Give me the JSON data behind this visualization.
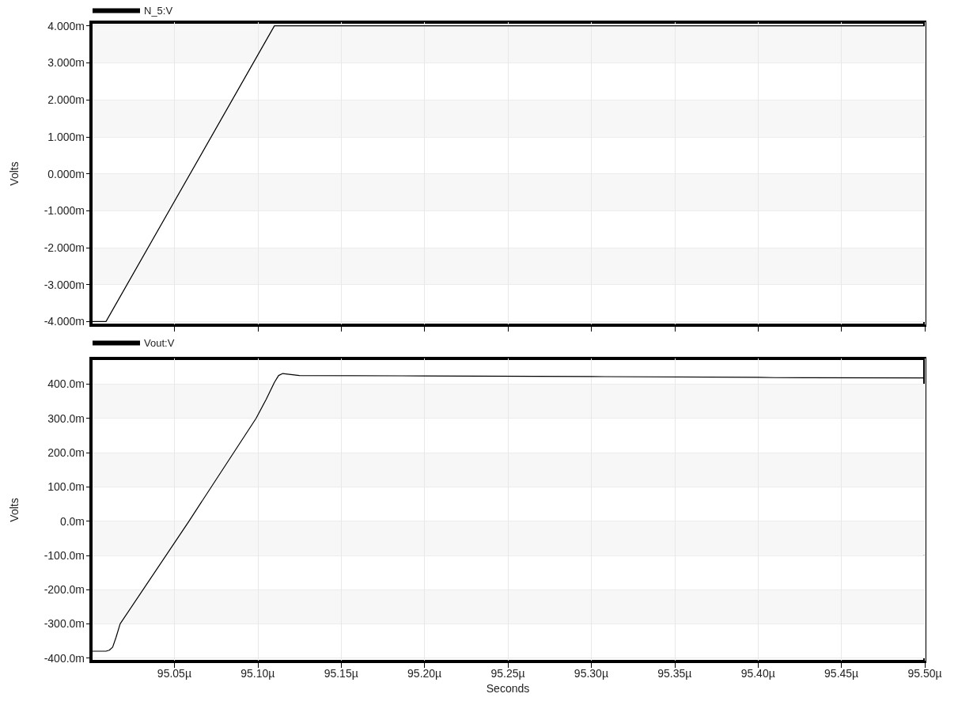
{
  "chart_data": [
    {
      "type": "line",
      "ylabel": "Volts",
      "legend": "top left",
      "grid": true,
      "tick_labels": "y",
      "xlim": [
        95.0,
        95.5
      ],
      "ylim": [
        -4.1,
        4.1
      ],
      "xticks": [
        {
          "value": 95.05,
          "label": null
        },
        {
          "value": 95.1,
          "label": null
        },
        {
          "value": 95.15,
          "label": null
        },
        {
          "value": 95.2,
          "label": null
        },
        {
          "value": 95.25,
          "label": null
        },
        {
          "value": 95.3,
          "label": null
        },
        {
          "value": 95.35,
          "label": null
        },
        {
          "value": 95.4,
          "label": null
        },
        {
          "value": 95.45,
          "label": null
        },
        {
          "value": 95.5,
          "label": null
        }
      ],
      "yticks": [
        {
          "value": -4,
          "label": "-4.000m"
        },
        {
          "value": -3,
          "label": "-3.000m"
        },
        {
          "value": -2,
          "label": "-2.000m"
        },
        {
          "value": -1,
          "label": "-1.000m"
        },
        {
          "value": 0,
          "label": "0.000m"
        },
        {
          "value": 1,
          "label": "1.000m"
        },
        {
          "value": 2,
          "label": "2.000m"
        },
        {
          "value": 3,
          "label": "3.000m"
        },
        {
          "value": 4,
          "label": "4.000m"
        }
      ],
      "series": [
        {
          "name": "N_5:V",
          "color": "#000000",
          "x": [
            95.0,
            95.009,
            95.11,
            95.5
          ],
          "values": [
            -4.0,
            -4.0,
            4.0,
            4.0
          ]
        }
      ]
    },
    {
      "type": "line",
      "ylabel": "Volts",
      "xlabel": "Seconds",
      "legend": "top left",
      "grid": true,
      "xlim": [
        95.0,
        95.5
      ],
      "ylim": [
        -410,
        475
      ],
      "xticks": [
        {
          "value": 95.05,
          "label": "95.05µ"
        },
        {
          "value": 95.1,
          "label": "95.10µ"
        },
        {
          "value": 95.15,
          "label": "95.15µ"
        },
        {
          "value": 95.2,
          "label": "95.20µ"
        },
        {
          "value": 95.25,
          "label": "95.25µ"
        },
        {
          "value": 95.3,
          "label": "95.30µ"
        },
        {
          "value": 95.35,
          "label": "95.35µ"
        },
        {
          "value": 95.4,
          "label": "95.40µ"
        },
        {
          "value": 95.45,
          "label": "95.45µ"
        },
        {
          "value": 95.5,
          "label": "95.50µ"
        }
      ],
      "yticks": [
        {
          "value": -400,
          "label": "-400.0m"
        },
        {
          "value": -300,
          "label": "-300.0m"
        },
        {
          "value": -200,
          "label": "-200.0m"
        },
        {
          "value": -100,
          "label": "-100.0m"
        },
        {
          "value": 0,
          "label": "0.0m"
        },
        {
          "value": 100,
          "label": "100.0m"
        },
        {
          "value": 200,
          "label": "200.0m"
        },
        {
          "value": 300,
          "label": "300.0m"
        },
        {
          "value": 400,
          "label": "400.0m"
        }
      ],
      "series": [
        {
          "name": "Vout:V",
          "color": "#000000",
          "x": [
            95.0,
            95.009,
            95.011,
            95.013,
            95.015,
            95.0175,
            95.0588,
            95.099,
            95.105,
            95.11,
            95.1125,
            95.115,
            95.12,
            95.125,
            95.2,
            95.3,
            95.4,
            95.41,
            95.5
          ],
          "values": [
            -380,
            -380,
            -377,
            -368,
            -340,
            -300,
            0,
            300,
            355,
            405,
            425,
            431,
            428,
            425,
            424,
            422,
            420,
            419,
            418
          ]
        }
      ]
    }
  ]
}
